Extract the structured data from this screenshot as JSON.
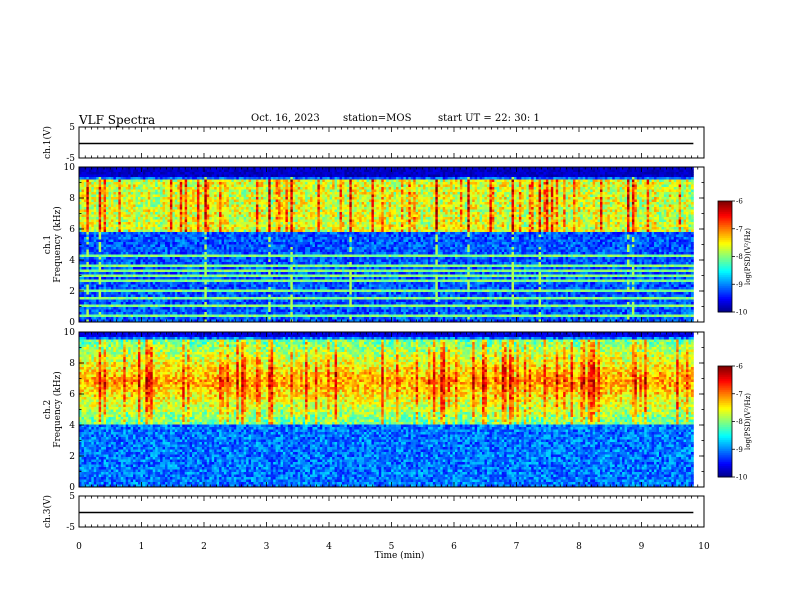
{
  "header": {
    "title": "VLF Spectra",
    "date": "Oct. 16, 2023",
    "station": "station=MOS",
    "start": "start  UT =   22: 30: 1"
  },
  "chart_data": [
    {
      "type": "line",
      "panel": "ch1-voltage",
      "ylabel": "ch.1(V)",
      "ylim": [
        -5,
        5
      ],
      "yticks": [
        "5",
        "-5"
      ],
      "series": [
        {
          "values": [
            0,
            0
          ]
        }
      ],
      "x": [
        0,
        9.83
      ]
    },
    {
      "type": "heatmap",
      "panel": "ch1-spectrogram",
      "ylabel": "ch.1\nFrequency (kHz)",
      "ylabel_top": "ch.1",
      "ylabel_bottom": "Frequency (kHz)",
      "ylim": [
        0,
        10
      ],
      "yticks": [
        "0",
        "2",
        "4",
        "6",
        "8",
        "10"
      ],
      "xlim": [
        0,
        10
      ],
      "data_xmax": 9.83,
      "colorbar": {
        "label": "log(PSD)(V²/Hz)",
        "range": [
          -10,
          -6
        ],
        "ticks": [
          "-6",
          "-7",
          "-8",
          "-9",
          "-10"
        ]
      },
      "band_profile": {
        "upper_band_khz": [
          5.8,
          9.2
        ],
        "narrowband_lines_khz": [
          0.4,
          1.0,
          1.5,
          2.0,
          2.6,
          3.0,
          3.3,
          3.6,
          4.3
        ]
      }
    },
    {
      "type": "heatmap",
      "panel": "ch2-spectrogram",
      "ylabel_top": "ch.2",
      "ylabel_bottom": "Frequency (kHz)",
      "ylim": [
        0,
        10
      ],
      "yticks": [
        "0",
        "2",
        "4",
        "6",
        "8",
        "10"
      ],
      "xlim": [
        0,
        10
      ],
      "data_xmax": 9.83,
      "colorbar": {
        "label": "log(PSD)(V²/Hz)",
        "range": [
          -10,
          -6
        ],
        "ticks": [
          "-6",
          "-7",
          "-8",
          "-9",
          "-10"
        ]
      },
      "band_profile": {
        "upper_band_khz": [
          4.0,
          9.5
        ],
        "peak_khz": 6.8
      }
    },
    {
      "type": "line",
      "panel": "ch3-voltage",
      "ylabel": "ch.3(V)",
      "ylim": [
        -5,
        5
      ],
      "yticks": [
        "5",
        "-5"
      ],
      "series": [
        {
          "values": [
            0,
            0
          ]
        }
      ],
      "x": [
        0,
        9.83
      ]
    }
  ],
  "x_axis": {
    "label": "Time (min)",
    "ticks": [
      "0",
      "1",
      "2",
      "3",
      "4",
      "5",
      "6",
      "7",
      "8",
      "9",
      "10"
    ]
  }
}
